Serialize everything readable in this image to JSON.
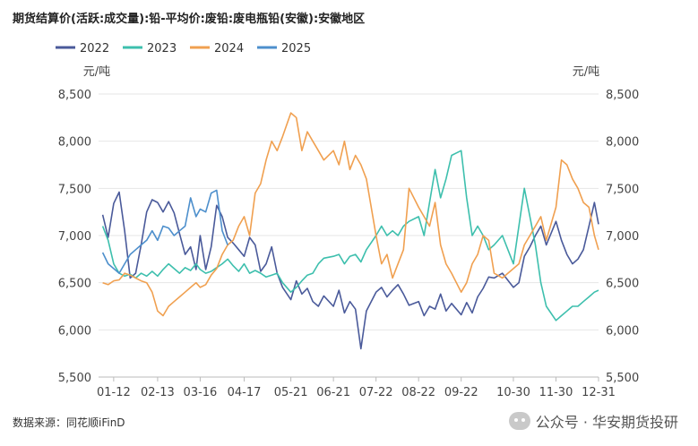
{
  "title": "期货结算价(活跃:成交量):铅-平均价:废铅:废电瓶铅(安徽):安徽地区",
  "source": "数据来源：同花顺iFinD",
  "brand": "公众号 · 华安期货投研",
  "brand_icon": "wechat-icon",
  "chart_data": {
    "type": "line",
    "title": "期货结算价(活跃:成交量):铅-平均价:废铅:废电瓶铅(安徽):安徽地区",
    "unit_left": "元/吨",
    "unit_right": "元/吨",
    "ylim": [
      5500,
      8500
    ],
    "yticks": [
      5500,
      6000,
      6500,
      7000,
      7500,
      8000,
      8500
    ],
    "ytick_labels": [
      "5,500",
      "6,000",
      "6,500",
      "7,000",
      "7,500",
      "8,000",
      "8,500"
    ],
    "xlim": [
      "01-01",
      "12-31"
    ],
    "xticks": [
      "01-12",
      "02-13",
      "03-16",
      "04-17",
      "05-21",
      "06-21",
      "07-22",
      "08-22",
      "09-22",
      "10-30",
      "11-30",
      "12-31"
    ],
    "grid": "horizontal",
    "legend_position": "top-left",
    "series": [
      {
        "name": "2022",
        "color": "#4a5a9a",
        "x": [
          "01-04",
          "01-08",
          "01-12",
          "01-16",
          "01-20",
          "01-24",
          "01-28",
          "02-01",
          "02-05",
          "02-09",
          "02-13",
          "02-17",
          "02-21",
          "02-25",
          "03-01",
          "03-05",
          "03-09",
          "03-13",
          "03-16",
          "03-20",
          "03-24",
          "03-28",
          "04-01",
          "04-05",
          "04-09",
          "04-13",
          "04-17",
          "04-21",
          "04-25",
          "04-29",
          "05-03",
          "05-07",
          "05-11",
          "05-15",
          "05-21",
          "05-25",
          "05-29",
          "06-02",
          "06-06",
          "06-10",
          "06-14",
          "06-21",
          "06-25",
          "06-29",
          "07-03",
          "07-07",
          "07-11",
          "07-15",
          "07-22",
          "07-26",
          "07-30",
          "08-03",
          "08-07",
          "08-11",
          "08-15",
          "08-22",
          "08-26",
          "08-30",
          "09-03",
          "09-07",
          "09-11",
          "09-15",
          "09-22",
          "09-26",
          "09-30",
          "10-04",
          "10-08",
          "10-12",
          "10-16",
          "10-22",
          "10-30",
          "11-03",
          "11-07",
          "11-11",
          "11-15",
          "11-19",
          "11-23",
          "11-30",
          "12-04",
          "12-08",
          "12-12",
          "12-16",
          "12-20",
          "12-24",
          "12-28",
          "12-31"
        ],
        "values": [
          7220,
          6980,
          7340,
          7460,
          7050,
          6550,
          6600,
          6900,
          7250,
          7380,
          7350,
          7250,
          7360,
          7240,
          7020,
          6800,
          6880,
          6640,
          7000,
          6640,
          6880,
          7320,
          7200,
          6980,
          6920,
          6850,
          6780,
          6980,
          6900,
          6620,
          6700,
          6880,
          6600,
          6450,
          6320,
          6520,
          6380,
          6440,
          6300,
          6250,
          6360,
          6250,
          6420,
          6180,
          6300,
          6220,
          5800,
          6200,
          6400,
          6450,
          6350,
          6420,
          6480,
          6380,
          6260,
          6300,
          6150,
          6250,
          6220,
          6380,
          6200,
          6280,
          6160,
          6290,
          6180,
          6350,
          6440,
          6560,
          6550,
          6600,
          6450,
          6500,
          6780,
          6880,
          7000,
          7100,
          6900,
          7150,
          6950,
          6800,
          6700,
          6750,
          6850,
          7100,
          7350,
          7120
        ]
      },
      {
        "name": "2023",
        "color": "#3dbfad",
        "x": [
          "01-04",
          "01-08",
          "01-12",
          "01-16",
          "01-20",
          "01-24",
          "01-28",
          "02-01",
          "02-05",
          "02-09",
          "02-13",
          "02-17",
          "02-21",
          "02-25",
          "03-01",
          "03-05",
          "03-09",
          "03-13",
          "03-16",
          "03-20",
          "03-24",
          "03-28",
          "04-01",
          "04-05",
          "04-09",
          "04-13",
          "04-17",
          "04-21",
          "04-25",
          "04-29",
          "05-03",
          "05-07",
          "05-11",
          "05-15",
          "05-21",
          "05-25",
          "05-29",
          "06-02",
          "06-06",
          "06-10",
          "06-14",
          "06-21",
          "06-25",
          "06-29",
          "07-03",
          "07-07",
          "07-11",
          "07-15",
          "07-22",
          "07-26",
          "07-30",
          "08-03",
          "08-07",
          "08-11",
          "08-15",
          "08-22",
          "08-26",
          "08-30",
          "09-03",
          "09-07",
          "09-11",
          "09-15",
          "09-22",
          "09-26",
          "09-30",
          "10-04",
          "10-08",
          "10-12",
          "10-16",
          "10-22",
          "10-30",
          "11-03",
          "11-07",
          "11-11",
          "11-15",
          "11-19",
          "11-23",
          "11-30",
          "12-04",
          "12-08",
          "12-12",
          "12-16",
          "12-20",
          "12-24",
          "12-28",
          "12-31"
        ],
        "values": [
          7100,
          6950,
          6700,
          6600,
          6570,
          6590,
          6550,
          6600,
          6570,
          6620,
          6570,
          6640,
          6700,
          6650,
          6600,
          6660,
          6630,
          6700,
          6640,
          6600,
          6620,
          6660,
          6700,
          6750,
          6680,
          6620,
          6700,
          6600,
          6630,
          6600,
          6560,
          6580,
          6600,
          6500,
          6400,
          6450,
          6520,
          6580,
          6600,
          6700,
          6760,
          6780,
          6800,
          6700,
          6780,
          6800,
          6720,
          6850,
          7000,
          7100,
          7000,
          7050,
          7000,
          7100,
          7150,
          7200,
          7000,
          7350,
          7700,
          7400,
          7600,
          7850,
          7900,
          7400,
          7000,
          7100,
          7000,
          6850,
          6900,
          7000,
          6700,
          7100,
          7500,
          7200,
          6900,
          6500,
          6250,
          6100,
          6150,
          6200,
          6250,
          6250,
          6300,
          6350,
          6400,
          6420
        ]
      },
      {
        "name": "2024",
        "color": "#f0a050",
        "x": [
          "01-04",
          "01-08",
          "01-12",
          "01-16",
          "01-20",
          "01-24",
          "01-28",
          "02-01",
          "02-05",
          "02-09",
          "02-13",
          "02-17",
          "02-21",
          "02-25",
          "03-01",
          "03-05",
          "03-09",
          "03-13",
          "03-16",
          "03-20",
          "03-24",
          "03-28",
          "04-01",
          "04-05",
          "04-09",
          "04-13",
          "04-17",
          "04-21",
          "04-25",
          "04-29",
          "05-03",
          "05-07",
          "05-11",
          "05-15",
          "05-21",
          "05-25",
          "05-29",
          "06-02",
          "06-06",
          "06-10",
          "06-14",
          "06-21",
          "06-25",
          "06-29",
          "07-03",
          "07-07",
          "07-11",
          "07-15",
          "07-22",
          "07-26",
          "07-30",
          "08-03",
          "08-07",
          "08-11",
          "08-15",
          "08-22",
          "08-26",
          "08-30",
          "09-03",
          "09-07",
          "09-11",
          "09-15",
          "09-22",
          "09-26",
          "09-30",
          "10-04",
          "10-08",
          "10-12",
          "10-16",
          "10-22",
          "10-30",
          "11-03",
          "11-07",
          "11-11",
          "11-15",
          "11-19",
          "11-23",
          "11-30",
          "12-04",
          "12-08",
          "12-12",
          "12-16",
          "12-20",
          "12-24",
          "12-28",
          "12-31"
        ],
        "values": [
          6500,
          6480,
          6520,
          6530,
          6600,
          6580,
          6550,
          6520,
          6500,
          6400,
          6200,
          6150,
          6250,
          6300,
          6350,
          6400,
          6450,
          6500,
          6450,
          6480,
          6580,
          6650,
          6800,
          6900,
          6950,
          7100,
          7200,
          7000,
          7450,
          7550,
          7800,
          8000,
          7900,
          8050,
          8300,
          8250,
          7900,
          8100,
          8000,
          7900,
          7800,
          7900,
          7750,
          8000,
          7700,
          7850,
          7750,
          7600,
          7000,
          6700,
          6800,
          6550,
          6700,
          6850,
          7500,
          7300,
          7200,
          7100,
          7350,
          6900,
          6700,
          6600,
          6400,
          6500,
          6700,
          6800,
          7000,
          6950,
          6600,
          6550,
          6650,
          6700,
          6900,
          7000,
          7100,
          7200,
          6950,
          7300,
          7800,
          7750,
          7600,
          7500,
          7350,
          7300,
          7000,
          6850
        ]
      },
      {
        "name": "2025",
        "color": "#4d8fcc",
        "x": [
          "01-04",
          "01-08",
          "01-12",
          "01-16",
          "01-20",
          "01-24",
          "01-28",
          "02-01",
          "02-05",
          "02-09",
          "02-13",
          "02-17",
          "02-21",
          "02-25",
          "03-01",
          "03-05",
          "03-09",
          "03-13",
          "03-16",
          "03-20",
          "03-24",
          "03-28",
          "04-01",
          "04-05"
        ],
        "values": [
          6820,
          6700,
          6650,
          6600,
          6700,
          6800,
          6850,
          6900,
          6950,
          7050,
          6950,
          7100,
          7080,
          7000,
          7050,
          7100,
          7400,
          7200,
          7280,
          7250,
          7450,
          7480,
          7050,
          6900
        ]
      }
    ]
  }
}
